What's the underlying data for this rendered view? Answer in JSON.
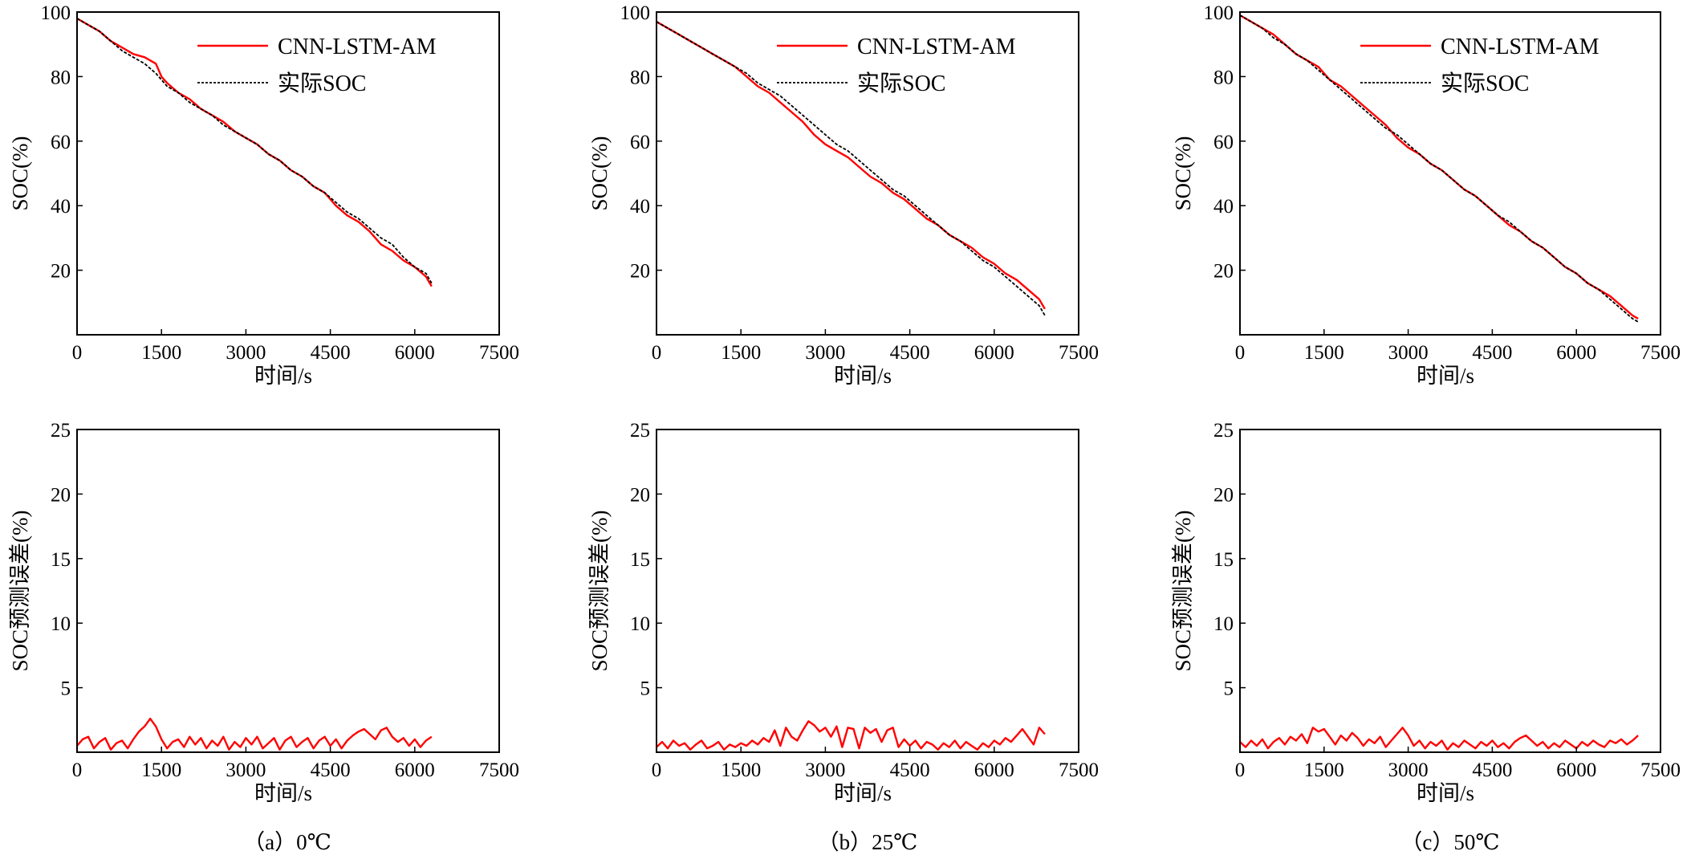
{
  "colors": {
    "predicted": "#ff0000",
    "actual": "#000000",
    "axis": "#000000"
  },
  "legend": {
    "predicted_label": "CNN-LSTM-AM",
    "actual_label": "实际SOC"
  },
  "chart_data": [
    {
      "type": "line",
      "panel": "a",
      "row": "soc",
      "xlabel": "时间/s",
      "ylabel": "SOC(%)",
      "xlim": [
        0,
        7500
      ],
      "ylim": [
        0,
        100
      ],
      "xticks": [
        0,
        1500,
        3000,
        4500,
        6000,
        7500
      ],
      "yticks": [
        20,
        40,
        60,
        80,
        100
      ],
      "ytick_labels": [
        "20",
        "40",
        "60",
        "80",
        "100"
      ],
      "legend": "top-right",
      "grid": false,
      "series": [
        {
          "name": "CNN-LSTM-AM",
          "color": "#ff0000",
          "x": [
            0,
            200,
            400,
            600,
            800,
            1000,
            1200,
            1400,
            1500,
            1600,
            1800,
            2000,
            2200,
            2400,
            2600,
            2800,
            3000,
            3200,
            3400,
            3600,
            3800,
            4000,
            4200,
            4400,
            4600,
            4800,
            5000,
            5200,
            5400,
            5600,
            5800,
            6000,
            6200,
            6300
          ],
          "y": [
            98,
            96,
            94,
            91,
            89,
            87,
            86,
            84,
            80,
            78,
            75,
            73,
            70,
            68,
            66,
            63,
            61,
            59,
            56,
            54,
            51,
            49,
            46,
            44,
            40,
            37,
            35,
            32,
            28,
            26,
            23,
            21,
            18,
            15
          ]
        },
        {
          "name": "实际SOC",
          "color": "#000000",
          "x": [
            0,
            200,
            400,
            600,
            800,
            1000,
            1200,
            1400,
            1500,
            1600,
            1800,
            2000,
            2200,
            2400,
            2600,
            2800,
            3000,
            3200,
            3400,
            3600,
            3800,
            4000,
            4200,
            4400,
            4600,
            4800,
            5000,
            5200,
            5400,
            5600,
            5800,
            6000,
            6200,
            6300
          ],
          "y": [
            98,
            96,
            94,
            91,
            88,
            86,
            84,
            81,
            79,
            77,
            75,
            72,
            70,
            68,
            65,
            63,
            61,
            59,
            56,
            54,
            51,
            49,
            46,
            44,
            41,
            38,
            36,
            33,
            30,
            28,
            24,
            21,
            19,
            16
          ]
        }
      ]
    },
    {
      "type": "line",
      "panel": "b",
      "row": "soc",
      "xlabel": "时间/s",
      "ylabel": "SOC(%)",
      "xlim": [
        0,
        7500
      ],
      "ylim": [
        0,
        100
      ],
      "xticks": [
        0,
        1500,
        3000,
        4500,
        6000,
        7500
      ],
      "yticks": [
        20,
        40,
        60,
        80,
        100
      ],
      "ytick_labels": [
        "20",
        "40",
        "60",
        "80",
        "100"
      ],
      "legend": "top-right",
      "grid": false,
      "series": [
        {
          "name": "CNN-LSTM-AM",
          "color": "#ff0000",
          "x": [
            0,
            200,
            400,
            600,
            800,
            1000,
            1200,
            1400,
            1600,
            1800,
            2000,
            2200,
            2400,
            2600,
            2800,
            3000,
            3200,
            3400,
            3600,
            3800,
            4000,
            4200,
            4400,
            4600,
            4800,
            5000,
            5200,
            5400,
            5600,
            5800,
            6000,
            6200,
            6400,
            6600,
            6800,
            6900
          ],
          "y": [
            97,
            95,
            93,
            91,
            89,
            87,
            85,
            83,
            80,
            77,
            75,
            72,
            69,
            66,
            62,
            59,
            57,
            55,
            52,
            49,
            47,
            44,
            42,
            39,
            36,
            34,
            31,
            29,
            27,
            24,
            22,
            19,
            17,
            14,
            11,
            8
          ]
        },
        {
          "name": "实际SOC",
          "color": "#000000",
          "x": [
            0,
            200,
            400,
            600,
            800,
            1000,
            1200,
            1400,
            1600,
            1800,
            2000,
            2200,
            2400,
            2600,
            2800,
            3000,
            3200,
            3400,
            3600,
            3800,
            4000,
            4200,
            4400,
            4600,
            4800,
            5000,
            5200,
            5400,
            5600,
            5800,
            6000,
            6200,
            6400,
            6600,
            6800,
            6900
          ],
          "y": [
            97,
            95,
            93,
            91,
            89,
            87,
            85,
            83,
            81,
            78,
            76,
            74,
            71,
            68,
            65,
            62,
            59,
            57,
            54,
            51,
            48,
            45,
            43,
            40,
            37,
            34,
            31,
            29,
            26,
            23,
            21,
            18,
            15,
            12,
            9,
            6
          ]
        }
      ]
    },
    {
      "type": "line",
      "panel": "c",
      "row": "soc",
      "xlabel": "时间/s",
      "ylabel": "SOC(%)",
      "xlim": [
        0,
        7500
      ],
      "ylim": [
        0,
        100
      ],
      "xticks": [
        0,
        1500,
        3000,
        4500,
        6000,
        7500
      ],
      "yticks": [
        20,
        40,
        60,
        80,
        100
      ],
      "ytick_labels": [
        "20",
        "40",
        "60",
        "80",
        "100"
      ],
      "legend": "top-right",
      "grid": false,
      "series": [
        {
          "name": "CNN-LSTM-AM",
          "color": "#ff0000",
          "x": [
            0,
            200,
            400,
            600,
            800,
            1000,
            1200,
            1400,
            1600,
            1800,
            2000,
            2200,
            2400,
            2600,
            2800,
            3000,
            3200,
            3400,
            3600,
            3800,
            4000,
            4200,
            4400,
            4600,
            4800,
            5000,
            5200,
            5400,
            5600,
            5800,
            6000,
            6200,
            6400,
            6600,
            6800,
            7000,
            7100
          ],
          "y": [
            99,
            97,
            95,
            93,
            90,
            87,
            85,
            83,
            79,
            77,
            74,
            71,
            68,
            65,
            61,
            58,
            56,
            53,
            51,
            48,
            45,
            43,
            40,
            37,
            34,
            32,
            29,
            27,
            24,
            21,
            19,
            16,
            14,
            12,
            9,
            6,
            5
          ]
        },
        {
          "name": "实际SOC",
          "color": "#000000",
          "x": [
            0,
            200,
            400,
            600,
            800,
            1000,
            1200,
            1400,
            1600,
            1800,
            2000,
            2200,
            2400,
            2600,
            2800,
            3000,
            3200,
            3400,
            3600,
            3800,
            4000,
            4200,
            4400,
            4600,
            4800,
            5000,
            5200,
            5400,
            5600,
            5800,
            6000,
            6200,
            6400,
            6600,
            6800,
            7000,
            7100
          ],
          "y": [
            99,
            97,
            95,
            92,
            90,
            87,
            85,
            82,
            79,
            76,
            73,
            70,
            67,
            64,
            62,
            59,
            56,
            53,
            51,
            48,
            45,
            43,
            40,
            37,
            35,
            32,
            29,
            27,
            24,
            21,
            19,
            16,
            14,
            11,
            8,
            5,
            4
          ]
        }
      ]
    },
    {
      "type": "line",
      "panel": "a",
      "row": "error",
      "xlabel": "时间/s",
      "ylabel": "SOC预测误差(%)",
      "xlim": [
        0,
        7500
      ],
      "ylim": [
        0,
        25
      ],
      "xticks": [
        0,
        1500,
        3000,
        4500,
        6000,
        7500
      ],
      "yticks": [
        5,
        10,
        15,
        20,
        25
      ],
      "ytick_labels": [
        "5",
        "10",
        "15",
        "20",
        "25"
      ],
      "legend": "none",
      "grid": false,
      "series": [
        {
          "name": "",
          "color": "#ff0000",
          "x": [
            0,
            100,
            200,
            300,
            400,
            500,
            600,
            700,
            800,
            900,
            1000,
            1100,
            1200,
            1300,
            1400,
            1500,
            1600,
            1700,
            1800,
            1900,
            2000,
            2100,
            2200,
            2300,
            2400,
            2500,
            2600,
            2700,
            2800,
            2900,
            3000,
            3100,
            3200,
            3300,
            3400,
            3500,
            3600,
            3700,
            3800,
            3900,
            4000,
            4100,
            4200,
            4300,
            4400,
            4500,
            4600,
            4700,
            4800,
            4900,
            5000,
            5100,
            5200,
            5300,
            5400,
            5500,
            5600,
            5700,
            5800,
            5900,
            6000,
            6100,
            6200,
            6300
          ],
          "y": [
            0.5,
            1.0,
            1.2,
            0.3,
            0.8,
            1.1,
            0.2,
            0.7,
            0.9,
            0.3,
            1.0,
            1.6,
            2.0,
            2.6,
            2.0,
            1.0,
            0.3,
            0.8,
            1.0,
            0.4,
            1.2,
            0.6,
            1.1,
            0.3,
            0.9,
            0.5,
            1.2,
            0.2,
            0.8,
            0.4,
            1.1,
            0.6,
            1.2,
            0.3,
            0.7,
            1.1,
            0.2,
            0.9,
            1.2,
            0.4,
            0.8,
            1.1,
            0.3,
            0.9,
            1.2,
            0.5,
            1.0,
            0.3,
            0.9,
            1.3,
            1.6,
            1.8,
            1.4,
            1.0,
            1.7,
            1.9,
            1.2,
            0.8,
            1.1,
            0.5,
            1.0,
            0.4,
            0.9,
            1.2
          ]
        }
      ]
    },
    {
      "type": "line",
      "panel": "b",
      "row": "error",
      "xlabel": "时间/s",
      "ylabel": "SOC预测误差(%)",
      "xlim": [
        0,
        7500
      ],
      "ylim": [
        0,
        25
      ],
      "xticks": [
        0,
        1500,
        3000,
        4500,
        6000,
        7500
      ],
      "yticks": [
        5,
        10,
        15,
        20,
        25
      ],
      "ytick_labels": [
        "5",
        "10",
        "15",
        "20",
        "25"
      ],
      "legend": "none",
      "grid": false,
      "series": [
        {
          "name": "",
          "color": "#ff0000",
          "x": [
            0,
            100,
            200,
            300,
            400,
            500,
            600,
            700,
            800,
            900,
            1000,
            1100,
            1200,
            1300,
            1400,
            1500,
            1600,
            1700,
            1800,
            1900,
            2000,
            2100,
            2200,
            2300,
            2400,
            2500,
            2600,
            2700,
            2800,
            2900,
            3000,
            3100,
            3200,
            3300,
            3400,
            3500,
            3600,
            3700,
            3800,
            3900,
            4000,
            4100,
            4200,
            4300,
            4400,
            4500,
            4600,
            4700,
            4800,
            4900,
            5000,
            5100,
            5200,
            5300,
            5400,
            5500,
            5600,
            5700,
            5800,
            5900,
            6000,
            6100,
            6200,
            6300,
            6400,
            6500,
            6600,
            6700,
            6800,
            6900
          ],
          "y": [
            0.4,
            0.8,
            0.3,
            0.9,
            0.5,
            0.7,
            0.2,
            0.6,
            0.9,
            0.3,
            0.5,
            0.8,
            0.2,
            0.6,
            0.4,
            0.7,
            0.5,
            0.9,
            0.6,
            1.1,
            0.8,
            1.7,
            0.5,
            1.9,
            1.2,
            0.9,
            1.7,
            2.4,
            2.1,
            1.6,
            1.9,
            1.2,
            2.0,
            0.4,
            1.9,
            1.8,
            0.3,
            1.9,
            1.5,
            1.8,
            0.8,
            1.7,
            1.9,
            0.4,
            1.0,
            0.5,
            0.9,
            0.3,
            0.8,
            0.6,
            0.2,
            0.7,
            0.4,
            0.9,
            0.3,
            0.8,
            0.5,
            0.2,
            0.7,
            0.4,
            0.9,
            0.6,
            1.1,
            0.8,
            1.3,
            1.8,
            1.2,
            0.6,
            1.9,
            1.4
          ]
        }
      ]
    },
    {
      "type": "line",
      "panel": "c",
      "row": "error",
      "xlabel": "时间/s",
      "ylabel": "SOC预测误差(%)",
      "xlim": [
        0,
        7500
      ],
      "ylim": [
        0,
        25
      ],
      "xticks": [
        0,
        1500,
        3000,
        4500,
        6000,
        7500
      ],
      "yticks": [
        5,
        10,
        15,
        20,
        25
      ],
      "ytick_labels": [
        "5",
        "10",
        "15",
        "20",
        "25"
      ],
      "legend": "none",
      "grid": false,
      "series": [
        {
          "name": "",
          "color": "#ff0000",
          "x": [
            0,
            100,
            200,
            300,
            400,
            500,
            600,
            700,
            800,
            900,
            1000,
            1100,
            1200,
            1300,
            1400,
            1500,
            1600,
            1700,
            1800,
            1900,
            2000,
            2100,
            2200,
            2300,
            2400,
            2500,
            2600,
            2700,
            2800,
            2900,
            3000,
            3100,
            3200,
            3300,
            3400,
            3500,
            3600,
            3700,
            3800,
            3900,
            4000,
            4100,
            4200,
            4300,
            4400,
            4500,
            4600,
            4700,
            4800,
            4900,
            5000,
            5100,
            5200,
            5300,
            5400,
            5500,
            5600,
            5700,
            5800,
            5900,
            6000,
            6100,
            6200,
            6300,
            6400,
            6500,
            6600,
            6700,
            6800,
            6900,
            7000,
            7100
          ],
          "y": [
            0.8,
            0.4,
            0.9,
            0.5,
            1.0,
            0.3,
            0.8,
            1.1,
            0.6,
            1.2,
            0.9,
            1.4,
            0.7,
            1.9,
            1.6,
            1.8,
            1.2,
            0.6,
            1.3,
            0.9,
            1.5,
            1.1,
            0.5,
            1.0,
            0.7,
            1.2,
            0.4,
            0.9,
            1.4,
            1.9,
            1.3,
            0.5,
            0.9,
            0.3,
            0.8,
            0.5,
            0.9,
            0.2,
            0.7,
            0.4,
            0.9,
            0.6,
            0.3,
            0.8,
            0.5,
            0.9,
            0.4,
            0.7,
            0.3,
            0.8,
            1.1,
            1.3,
            0.9,
            0.5,
            0.8,
            0.3,
            0.7,
            0.4,
            0.9,
            0.6,
            0.3,
            0.8,
            0.5,
            0.9,
            0.6,
            0.4,
            0.9,
            0.7,
            1.0,
            0.6,
            0.9,
            1.3
          ]
        }
      ]
    }
  ],
  "captions": [
    "（a）0℃",
    "（b）25℃",
    "（c）50℃"
  ]
}
